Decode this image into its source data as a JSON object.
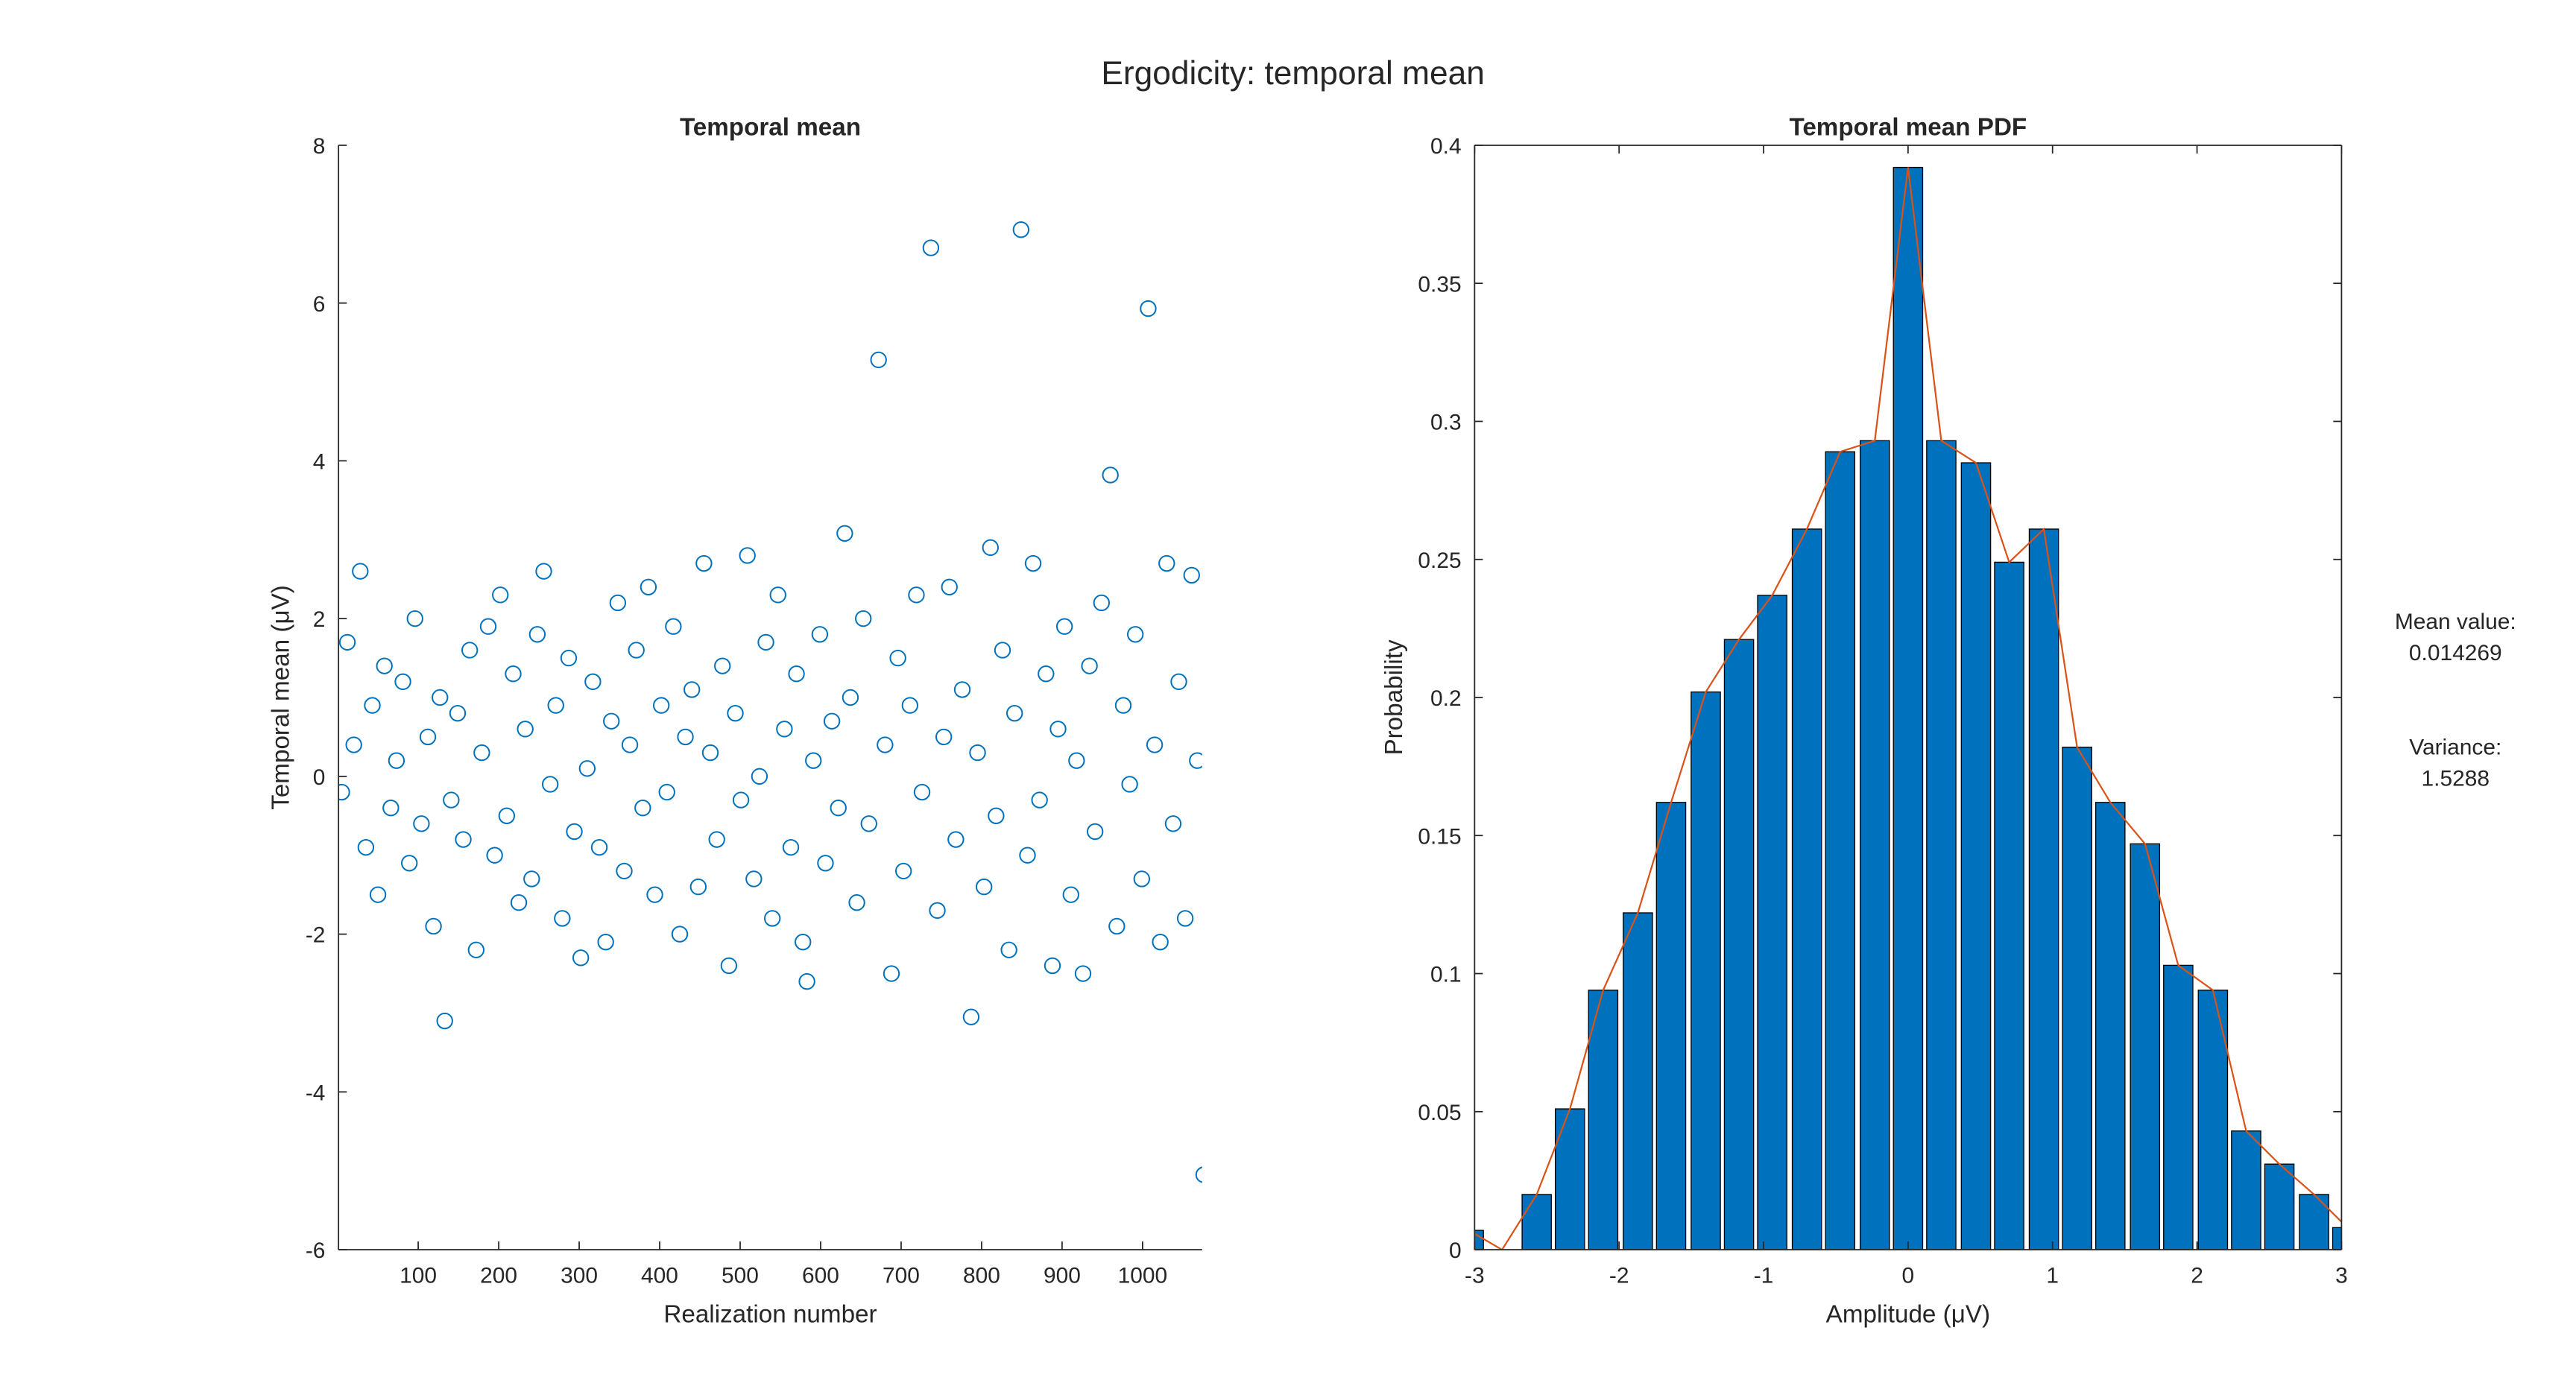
{
  "title": "Ergodicity: temporal mean",
  "chart_data": [
    {
      "type": "scatter",
      "title": "Temporal mean",
      "xlabel": "Realization number",
      "ylabel": "Temporal mean (μV)",
      "color": "#0072bd",
      "box": false,
      "xlim": [
        1,
        1074
      ],
      "xticks": [
        100,
        200,
        300,
        400,
        500,
        600,
        700,
        800,
        900,
        1000
      ],
      "ylim": [
        -6,
        8
      ],
      "yticks": [
        -6,
        -4,
        -2,
        0,
        2,
        4,
        6,
        8
      ],
      "x": [
        5,
        12,
        20,
        28,
        35,
        43,
        50,
        58,
        66,
        73,
        81,
        89,
        96,
        104,
        112,
        119,
        127,
        133,
        141,
        149,
        156,
        164,
        172,
        179,
        187,
        195,
        202,
        210,
        218,
        225,
        233,
        241,
        248,
        256,
        264,
        271,
        279,
        287,
        294,
        302,
        310,
        317,
        325,
        333,
        340,
        348,
        356,
        363,
        371,
        379,
        386,
        394,
        402,
        409,
        417,
        425,
        432,
        440,
        448,
        455,
        463,
        471,
        478,
        486,
        494,
        501,
        509,
        517,
        524,
        532,
        540,
        547,
        555,
        563,
        570,
        578,
        583,
        591,
        599,
        606,
        614,
        622,
        630,
        637,
        645,
        653,
        660,
        672,
        680,
        688,
        696,
        703,
        711,
        719,
        726,
        737,
        745,
        753,
        760,
        768,
        776,
        787,
        795,
        803,
        811,
        818,
        826,
        834,
        841,
        849,
        857,
        864,
        872,
        880,
        888,
        895,
        903,
        911,
        918,
        926,
        934,
        941,
        949,
        960,
        968,
        976,
        984,
        991,
        999,
        1007,
        1015,
        1022,
        1030,
        1038,
        1045,
        1053,
        1061,
        1068,
        1076
      ],
      "values": [
        -0.2,
        1.7,
        0.4,
        2.6,
        -0.9,
        0.9,
        -1.5,
        1.4,
        -0.4,
        0.2,
        1.2,
        -1.1,
        2.0,
        -0.6,
        0.5,
        -1.9,
        1.0,
        -3.1,
        -0.3,
        0.8,
        -0.8,
        1.6,
        -2.2,
        0.3,
        1.9,
        -1.0,
        2.3,
        -0.5,
        1.3,
        -1.6,
        0.6,
        -1.3,
        1.8,
        2.6,
        -0.1,
        0.9,
        -1.8,
        1.5,
        -0.7,
        -2.3,
        0.1,
        1.2,
        -0.9,
        -2.1,
        0.7,
        2.2,
        -1.2,
        0.4,
        1.6,
        -0.4,
        2.4,
        -1.5,
        0.9,
        -0.2,
        1.9,
        -2.0,
        0.5,
        1.1,
        -1.4,
        2.7,
        0.3,
        -0.8,
        1.4,
        -2.4,
        0.8,
        -0.3,
        2.8,
        -1.3,
        0.0,
        1.7,
        -1.8,
        2.3,
        0.6,
        -0.9,
        1.3,
        -2.1,
        -2.6,
        0.2,
        1.8,
        -1.1,
        0.7,
        -0.4,
        3.08,
        1.0,
        -1.6,
        2.0,
        -0.6,
        5.28,
        0.4,
        -2.5,
        1.5,
        -1.2,
        0.9,
        2.3,
        -0.2,
        6.7,
        -1.7,
        0.5,
        2.4,
        -0.8,
        1.1,
        -3.05,
        0.3,
        -1.4,
        2.9,
        -0.5,
        1.6,
        -2.2,
        0.8,
        6.93,
        -1.0,
        2.7,
        -0.3,
        1.3,
        -2.4,
        0.6,
        1.9,
        -1.5,
        0.2,
        -2.5,
        1.4,
        -0.7,
        2.2,
        3.82,
        -1.9,
        0.9,
        -0.1,
        1.8,
        -1.3,
        5.93,
        0.4,
        -2.1,
        2.7,
        -0.6,
        1.2,
        -1.8,
        2.55,
        0.2,
        -5.05
      ]
    },
    {
      "type": "bar",
      "title": "Temporal mean PDF",
      "xlabel": "Amplitude (μV)",
      "ylabel": "Probability",
      "color": "#0072bd",
      "line_color": "#d95319",
      "box": true,
      "xlim": [
        -3,
        3
      ],
      "xticks": [
        -3,
        -2,
        -1,
        0,
        1,
        2,
        3
      ],
      "ylim": [
        0,
        0.4
      ],
      "yticks": [
        0,
        0.05,
        0.1,
        0.15,
        0.2,
        0.25,
        0.3,
        0.35,
        0.4
      ],
      "x": [
        -3.04,
        -2.81,
        -2.57,
        -2.34,
        -2.11,
        -1.87,
        -1.64,
        -1.4,
        -1.17,
        -0.94,
        -0.7,
        -0.47,
        -0.23,
        0,
        0.23,
        0.47,
        0.7,
        0.94,
        1.17,
        1.4,
        1.64,
        1.87,
        2.11,
        2.34,
        2.57,
        2.81,
        3.04
      ],
      "values": [
        0.007,
        0,
        0.02,
        0.051,
        0.094,
        0.122,
        0.162,
        0.202,
        0.221,
        0.237,
        0.261,
        0.289,
        0.293,
        0.392,
        0.293,
        0.285,
        0.249,
        0.261,
        0.182,
        0.162,
        0.147,
        0.103,
        0.094,
        0.043,
        0.031,
        0.02,
        0.008
      ],
      "annotations": [
        "Mean value:",
        "0.014269",
        "Variance:",
        "1.5288"
      ]
    }
  ]
}
